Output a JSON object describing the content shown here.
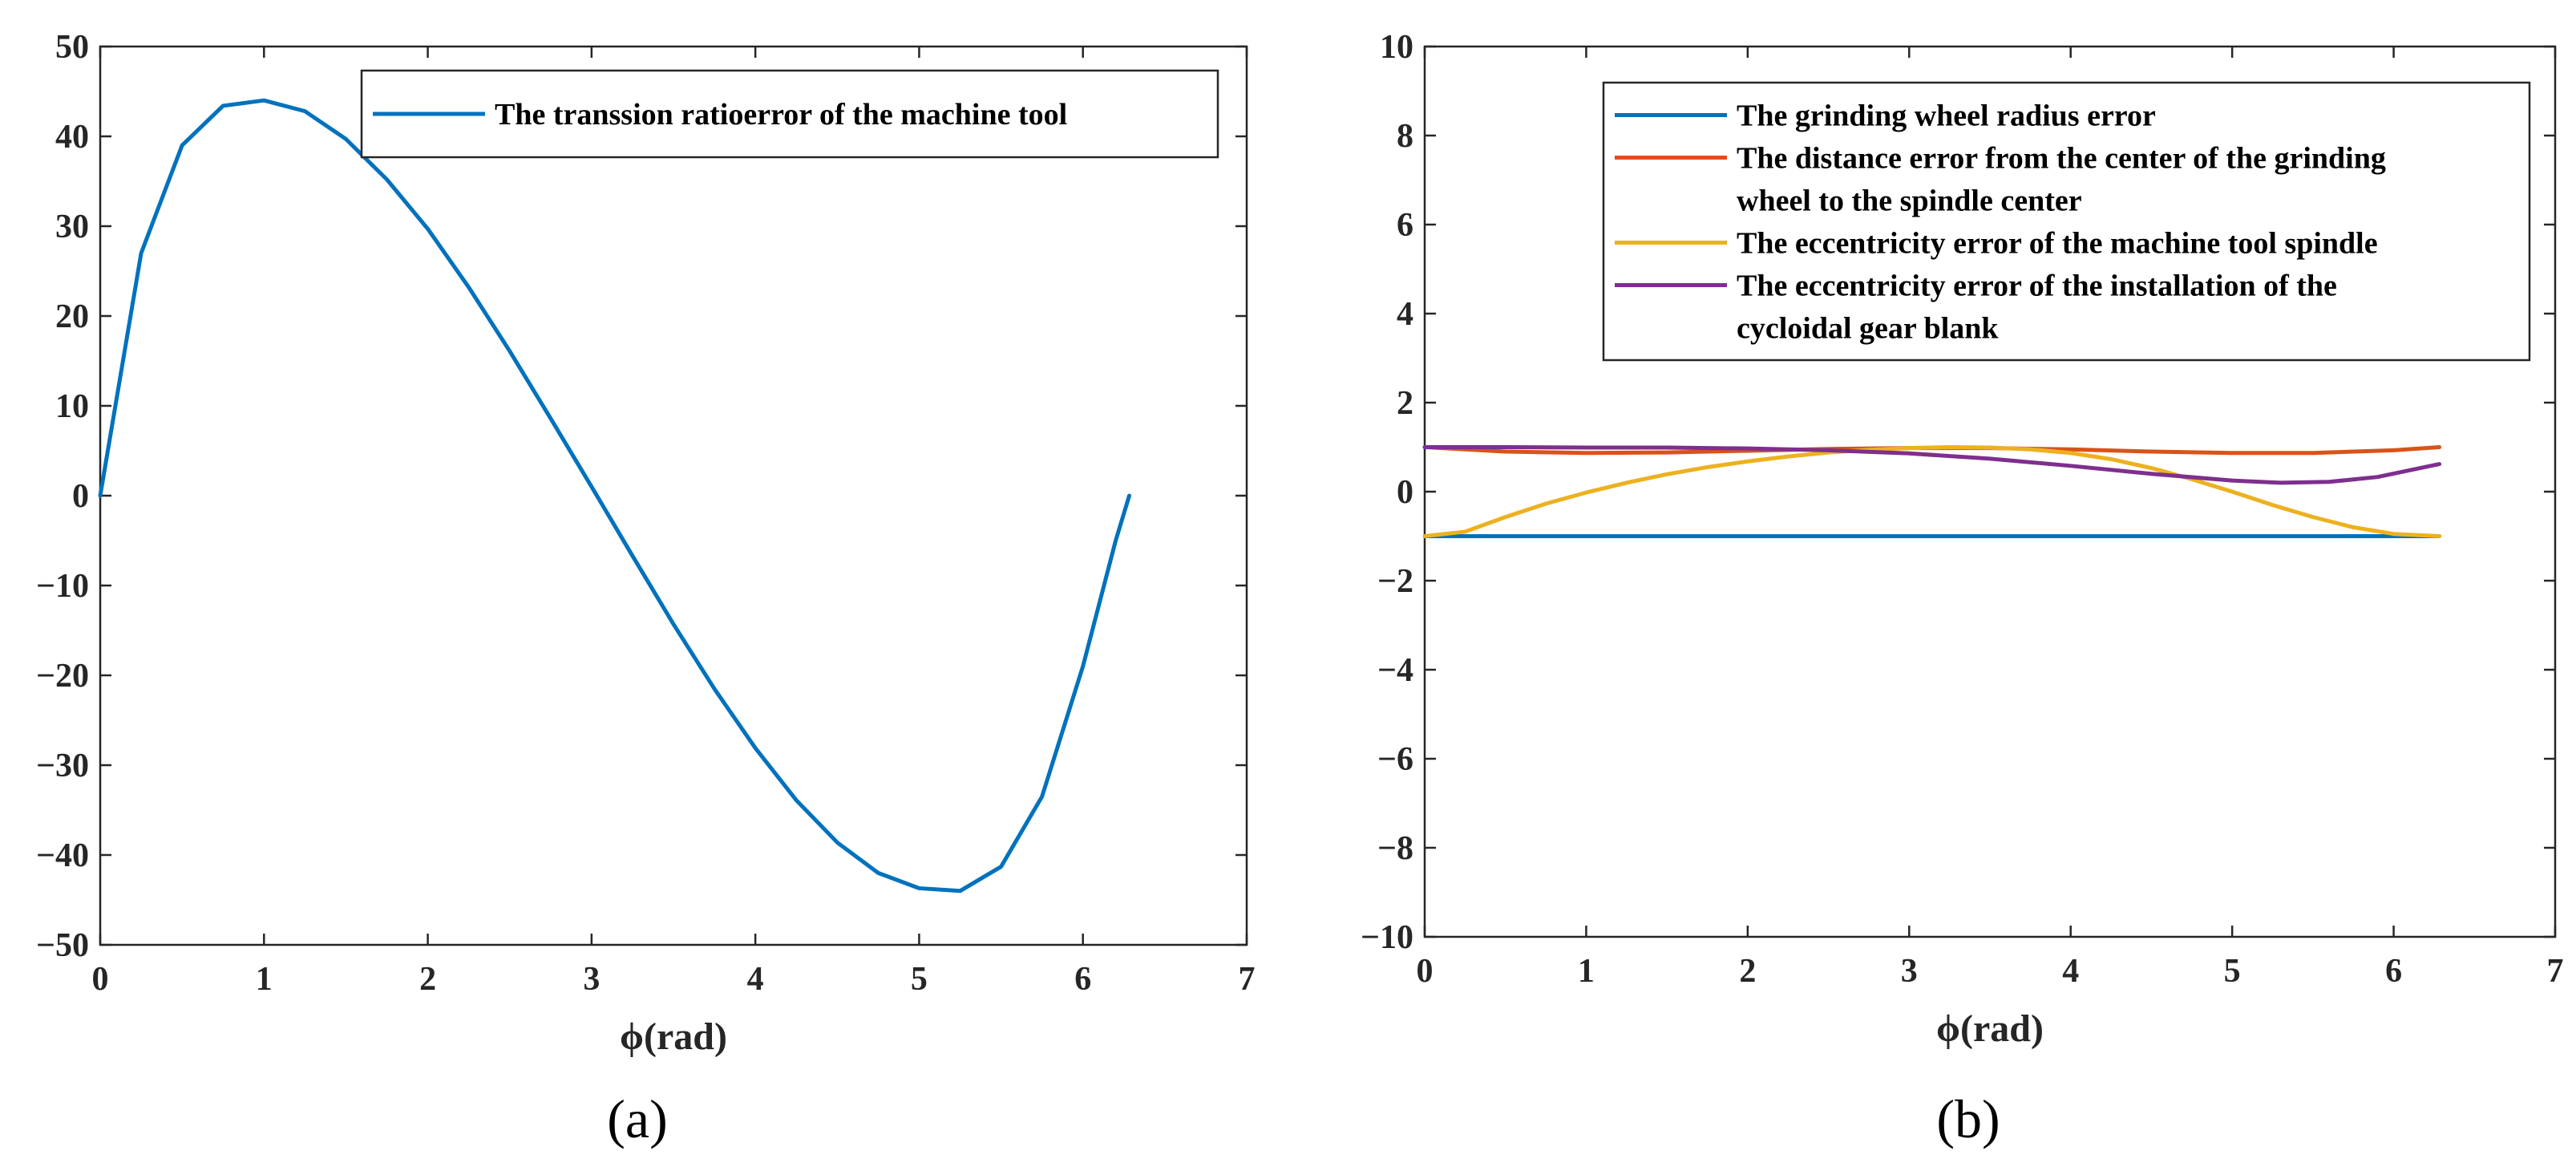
{
  "figure": {
    "panels": [
      {
        "caption": "(a)",
        "xlabel": "ϕ(rad)"
      },
      {
        "caption": "(b)",
        "xlabel": "ϕ(rad)"
      }
    ]
  },
  "chart_data": [
    {
      "type": "line",
      "xlabel": "ϕ(rad)",
      "ylabel": "",
      "xlim": [
        0,
        7
      ],
      "ylim": [
        -50,
        50
      ],
      "xticks": [
        0,
        1,
        2,
        3,
        4,
        5,
        6,
        7
      ],
      "yticks": [
        -50,
        -40,
        -30,
        -20,
        -10,
        0,
        10,
        20,
        30,
        40,
        50
      ],
      "grid": false,
      "legend_position": "top-right",
      "series": [
        {
          "name": "The transsion ratioerror of the machine tool",
          "color": "#0072BD",
          "x": [
            0,
            0.25,
            0.5,
            0.75,
            1.0,
            1.25,
            1.5,
            1.75,
            2.0,
            2.25,
            2.5,
            2.75,
            3.0,
            3.25,
            3.5,
            3.75,
            4.0,
            4.25,
            4.5,
            4.75,
            5.0,
            5.25,
            5.5,
            5.75,
            6.0,
            6.1,
            6.2,
            6.283
          ],
          "y": [
            0,
            27,
            39,
            43.4,
            44,
            42.8,
            39.7,
            35.2,
            29.7,
            23.2,
            16.1,
            8.6,
            1.0,
            -6.7,
            -14.3,
            -21.5,
            -28.1,
            -33.9,
            -38.6,
            -42.0,
            -43.7,
            -44.0,
            -41.3,
            -33.5,
            -19,
            -12,
            -5,
            0
          ]
        }
      ]
    },
    {
      "type": "line",
      "xlabel": "ϕ(rad)",
      "ylabel": "",
      "xlim": [
        0,
        7
      ],
      "ylim": [
        -10,
        10
      ],
      "xticks": [
        0,
        1,
        2,
        3,
        4,
        5,
        6,
        7
      ],
      "yticks": [
        -10,
        -8,
        -6,
        -4,
        -2,
        0,
        2,
        4,
        6,
        8,
        10
      ],
      "grid": false,
      "legend_position": "top-right",
      "series": [
        {
          "name": "The grinding wheel radius error",
          "color": "#0072BD",
          "x": [
            0,
            6.283
          ],
          "y": [
            -1,
            -1
          ]
        },
        {
          "name": "The distance error from the center of the grinding wheel to the spindle center",
          "legend_lines": [
            "The distance error from the center of the grinding",
            " wheel to the spindle center"
          ],
          "color": "#D95319",
          "x": [
            0,
            0.5,
            1.0,
            1.5,
            2.0,
            2.5,
            3.0,
            3.5,
            4.0,
            4.5,
            5.0,
            5.5,
            6.0,
            6.283
          ],
          "y": [
            1.0,
            0.9,
            0.87,
            0.88,
            0.92,
            0.96,
            0.98,
            0.98,
            0.95,
            0.9,
            0.87,
            0.87,
            0.93,
            1.0
          ]
        },
        {
          "name": "The eccentricity error of the machine tool spindle",
          "color": "#EDB120",
          "x": [
            0,
            0.25,
            0.5,
            0.75,
            1.0,
            1.25,
            1.5,
            1.75,
            2.0,
            2.25,
            2.5,
            2.75,
            3.0,
            3.25,
            3.5,
            3.75,
            4.0,
            4.25,
            4.5,
            4.75,
            5.0,
            5.25,
            5.5,
            5.75,
            6.0,
            6.283
          ],
          "y": [
            -1.0,
            -0.9,
            -0.57,
            -0.27,
            -0.02,
            0.2,
            0.39,
            0.55,
            0.68,
            0.79,
            0.88,
            0.94,
            0.98,
            1.0,
            0.99,
            0.95,
            0.87,
            0.73,
            0.53,
            0.28,
            0.0,
            -0.3,
            -0.57,
            -0.8,
            -0.95,
            -1.0
          ]
        },
        {
          "name": "The eccentricity error of the installation of the cycloidal gear blank",
          "legend_lines": [
            "The eccentricity error of the installation of the",
            "cycloidal gear blank"
          ],
          "color": "#7E2F8E",
          "x": [
            0,
            0.5,
            1.0,
            1.5,
            2.0,
            2.5,
            3.0,
            3.5,
            4.0,
            4.5,
            5.0,
            5.3,
            5.6,
            5.9,
            6.283
          ],
          "y": [
            1.0,
            1.0,
            0.99,
            0.99,
            0.97,
            0.93,
            0.86,
            0.74,
            0.58,
            0.4,
            0.25,
            0.2,
            0.22,
            0.33,
            0.62
          ]
        }
      ]
    }
  ]
}
